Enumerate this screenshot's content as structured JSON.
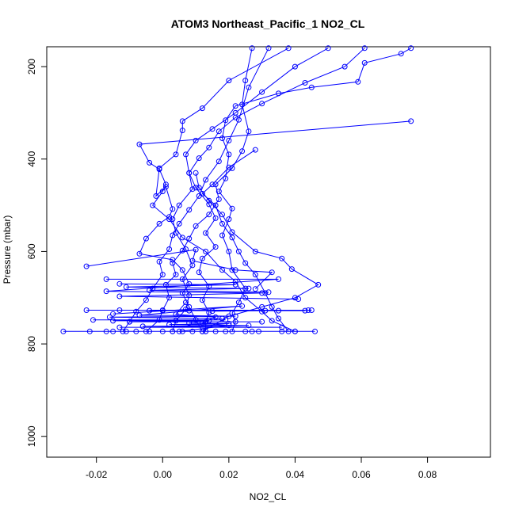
{
  "chart_data": {
    "type": "scatter",
    "title": "ATOM3 Northeast_Pacific_1 NO2_CL",
    "xlabel": "NO2_CL",
    "ylabel": "Pressure (mbar)",
    "xlim": [
      -0.035,
      0.099
    ],
    "ylim": [
      1045,
      157
    ],
    "y_reversed": true,
    "grid": false,
    "x_ticks": [
      -0.02,
      0.0,
      0.02,
      0.04,
      0.06,
      0.08
    ],
    "x_tick_labels": [
      "-0.02",
      "0.00",
      "0.02",
      "0.04",
      "0.06",
      "0.08"
    ],
    "y_ticks": [
      200,
      400,
      600,
      800,
      1000
    ],
    "y_tick_labels": [
      "200",
      "400",
      "600",
      "800",
      "1000"
    ],
    "marker": "open-circle",
    "color": "#0000ff",
    "series": [
      {
        "points": [
          [
            0.027,
            160
          ],
          [
            0.025,
            230
          ],
          [
            0.024,
            282
          ],
          [
            0.026,
            340
          ],
          [
            0.024,
            383
          ],
          [
            0.021,
            420
          ],
          [
            0.016,
            455
          ],
          [
            0.017,
            487
          ],
          [
            0.014,
            520
          ],
          [
            0.01,
            545
          ],
          [
            0.008,
            572
          ],
          [
            0.006,
            598
          ],
          [
            0.003,
            625
          ],
          [
            0.004,
            650
          ],
          [
            0.001,
            672
          ],
          [
            0.002,
            700
          ],
          [
            0.0,
            727
          ],
          [
            -0.001,
            748
          ],
          [
            -0.005,
            773
          ]
        ]
      },
      {
        "points": [
          [
            0.032,
            160
          ],
          [
            0.026,
            245
          ],
          [
            0.023,
            315
          ],
          [
            0.02,
            360
          ],
          [
            0.017,
            405
          ],
          [
            0.013,
            445
          ],
          [
            0.011,
            480
          ],
          [
            0.008,
            510
          ],
          [
            0.005,
            540
          ],
          [
            0.003,
            565
          ],
          [
            0.002,
            595
          ],
          [
            -0.001,
            622
          ],
          [
            0.0,
            650
          ],
          [
            -0.003,
            680
          ],
          [
            -0.005,
            705
          ],
          [
            -0.008,
            730
          ],
          [
            -0.01,
            752
          ],
          [
            -0.012,
            773
          ]
        ]
      },
      {
        "points": [
          [
            0.05,
            160
          ],
          [
            0.04,
            200
          ],
          [
            0.03,
            255
          ],
          [
            0.022,
            300
          ],
          [
            0.015,
            335
          ],
          [
            0.01,
            360
          ],
          [
            0.007,
            390
          ],
          [
            0.008,
            430
          ],
          [
            0.009,
            465
          ],
          [
            0.005,
            500
          ],
          [
            0.003,
            530
          ],
          [
            0.004,
            560
          ],
          [
            0.007,
            595
          ],
          [
            0.009,
            630
          ],
          [
            0.006,
            660
          ],
          [
            0.008,
            695
          ],
          [
            0.007,
            725
          ],
          [
            0.004,
            750
          ],
          [
            0.003,
            773
          ]
        ]
      },
      {
        "points": [
          [
            0.038,
            160
          ],
          [
            0.02,
            230
          ],
          [
            0.012,
            290
          ],
          [
            0.006,
            318
          ],
          [
            0.006,
            338
          ],
          [
            0.004,
            390
          ],
          [
            -0.001,
            420
          ],
          [
            -0.002,
            480
          ],
          [
            0.001,
            460
          ],
          [
            0.003,
            508
          ],
          [
            0.002,
            525
          ],
          [
            -0.001,
            540
          ],
          [
            -0.005,
            572
          ],
          [
            -0.007,
            605
          ],
          [
            0.003,
            618
          ],
          [
            0.006,
            640
          ],
          [
            0.008,
            670
          ],
          [
            0.006,
            690
          ],
          [
            0.008,
            720
          ],
          [
            0.01,
            748
          ],
          [
            0.012,
            773
          ]
        ]
      },
      {
        "points": [
          [
            0.061,
            160
          ],
          [
            0.055,
            200
          ],
          [
            0.043,
            235
          ],
          [
            0.03,
            280
          ],
          [
            0.022,
            310
          ],
          [
            0.017,
            340
          ],
          [
            0.014,
            375
          ],
          [
            0.011,
            398
          ],
          [
            0.008,
            430
          ],
          [
            0.01,
            462
          ],
          [
            0.014,
            498
          ],
          [
            0.016,
            528
          ],
          [
            0.013,
            560
          ],
          [
            0.016,
            590
          ],
          [
            0.012,
            615
          ],
          [
            0.011,
            645
          ],
          [
            0.014,
            675
          ],
          [
            0.012,
            705
          ],
          [
            0.014,
            732
          ],
          [
            0.013,
            752
          ],
          [
            0.013,
            773
          ]
        ]
      },
      {
        "points": [
          [
            0.075,
            160
          ],
          [
            0.072,
            172
          ],
          [
            0.061,
            192
          ],
          [
            0.059,
            233
          ],
          [
            0.045,
            245
          ],
          [
            0.035,
            258
          ],
          [
            0.022,
            285
          ],
          [
            0.019,
            316
          ],
          [
            0.018,
            355
          ],
          [
            0.02,
            390
          ],
          [
            0.019,
            442
          ],
          [
            0.017,
            470
          ],
          [
            0.021,
            507
          ],
          [
            0.02,
            530
          ],
          [
            0.018,
            565
          ],
          [
            0.02,
            600
          ],
          [
            0.021,
            640
          ],
          [
            0.025,
            680
          ],
          [
            0.023,
            710
          ],
          [
            0.021,
            733
          ],
          [
            0.022,
            752
          ],
          [
            0.021,
            773
          ]
        ]
      },
      {
        "points": [
          [
            0.075,
            318
          ],
          [
            -0.007,
            368
          ],
          [
            -0.004,
            408
          ],
          [
            -0.001,
            422
          ],
          [
            0.001,
            455
          ],
          [
            0.0,
            470
          ],
          [
            -0.003,
            500
          ],
          [
            0.002,
            530
          ],
          [
            0.006,
            570
          ],
          [
            0.013,
            600
          ],
          [
            0.018,
            640
          ],
          [
            0.022,
            665
          ],
          [
            0.025,
            700
          ],
          [
            0.03,
            730
          ],
          [
            0.033,
            750
          ],
          [
            0.04,
            773
          ]
        ]
      },
      {
        "points": [
          [
            0.028,
            380
          ],
          [
            0.02,
            418
          ],
          [
            0.015,
            455
          ],
          [
            0.012,
            475
          ],
          [
            0.016,
            500
          ],
          [
            0.018,
            540
          ],
          [
            0.021,
            570
          ],
          [
            0.023,
            600
          ],
          [
            0.025,
            625
          ],
          [
            0.028,
            650
          ],
          [
            0.031,
            690
          ],
          [
            0.033,
            720
          ],
          [
            0.035,
            745
          ],
          [
            0.038,
            773
          ]
        ]
      },
      {
        "points": [
          [
            0.01,
            430
          ],
          [
            0.011,
            462
          ],
          [
            0.014,
            490
          ],
          [
            0.018,
            520
          ],
          [
            0.021,
            558
          ],
          [
            0.028,
            600
          ],
          [
            0.036,
            615
          ],
          [
            0.039,
            638
          ],
          [
            0.047,
            672
          ],
          [
            0.04,
            700
          ],
          [
            0.03,
            720
          ],
          [
            0.02,
            740
          ],
          [
            0.012,
            773
          ]
        ]
      },
      {
        "points": [
          [
            -0.023,
            632
          ],
          [
            0.01,
            596
          ],
          [
            0.009,
            620
          ],
          [
            0.022,
            640
          ],
          [
            0.033,
            645
          ],
          [
            0.028,
            681
          ]
        ]
      },
      {
        "points": [
          [
            -0.017,
            660
          ],
          [
            0.035,
            660
          ],
          [
            -0.017,
            686
          ],
          [
            0.03,
            690
          ],
          [
            -0.013,
            697
          ],
          [
            0.041,
            703
          ]
        ]
      },
      {
        "points": [
          [
            -0.013,
            670
          ],
          [
            0.022,
            672
          ],
          [
            -0.011,
            677
          ],
          [
            0.026,
            680
          ],
          [
            -0.004,
            684
          ],
          [
            0.032,
            688
          ]
        ]
      },
      {
        "points": [
          [
            -0.023,
            727
          ],
          [
            0.045,
            727
          ],
          [
            -0.013,
            727
          ],
          [
            0.044,
            727
          ],
          [
            -0.004,
            728
          ],
          [
            0.043,
            728
          ],
          [
            0.0,
            728
          ],
          [
            0.035,
            728
          ],
          [
            0.008,
            728
          ],
          [
            0.031,
            728
          ],
          [
            0.015,
            729
          ]
        ]
      },
      {
        "points": [
          [
            -0.015,
            735
          ],
          [
            0.024,
            718
          ],
          [
            -0.007,
            738
          ],
          [
            0.022,
            740
          ],
          [
            -0.016,
            742
          ],
          [
            0.018,
            745
          ]
        ]
      },
      {
        "points": [
          [
            -0.021,
            748
          ],
          [
            0.019,
            748
          ],
          [
            -0.015,
            750
          ],
          [
            0.014,
            750
          ],
          [
            -0.01,
            752
          ],
          [
            0.03,
            752
          ]
        ]
      },
      {
        "points": [
          [
            -0.03,
            773
          ],
          [
            0.046,
            773
          ],
          [
            -0.022,
            773
          ],
          [
            0.04,
            773
          ],
          [
            -0.017,
            773
          ],
          [
            0.036,
            773
          ],
          [
            -0.015,
            773
          ],
          [
            0.029,
            773
          ],
          [
            -0.011,
            773
          ],
          [
            0.027,
            773
          ],
          [
            -0.008,
            773
          ],
          [
            0.025,
            773
          ],
          [
            -0.004,
            773
          ],
          [
            0.019,
            773
          ],
          [
            0.0,
            773
          ],
          [
            0.016,
            773
          ],
          [
            0.003,
            773
          ],
          [
            0.013,
            773
          ],
          [
            0.006,
            773
          ],
          [
            0.009,
            773
          ]
        ]
      },
      {
        "points": [
          [
            -0.013,
            764
          ],
          [
            0.036,
            764
          ],
          [
            -0.006,
            762
          ],
          [
            0.026,
            760
          ],
          [
            0.002,
            758
          ],
          [
            0.02,
            756
          ],
          [
            0.008,
            755
          ]
        ]
      },
      {
        "points": [
          [
            0.007,
            710
          ],
          [
            0.004,
            736
          ],
          [
            0.016,
            742
          ],
          [
            0.012,
            755
          ],
          [
            0.02,
            760
          ],
          [
            0.005,
            773
          ]
        ]
      }
    ]
  }
}
